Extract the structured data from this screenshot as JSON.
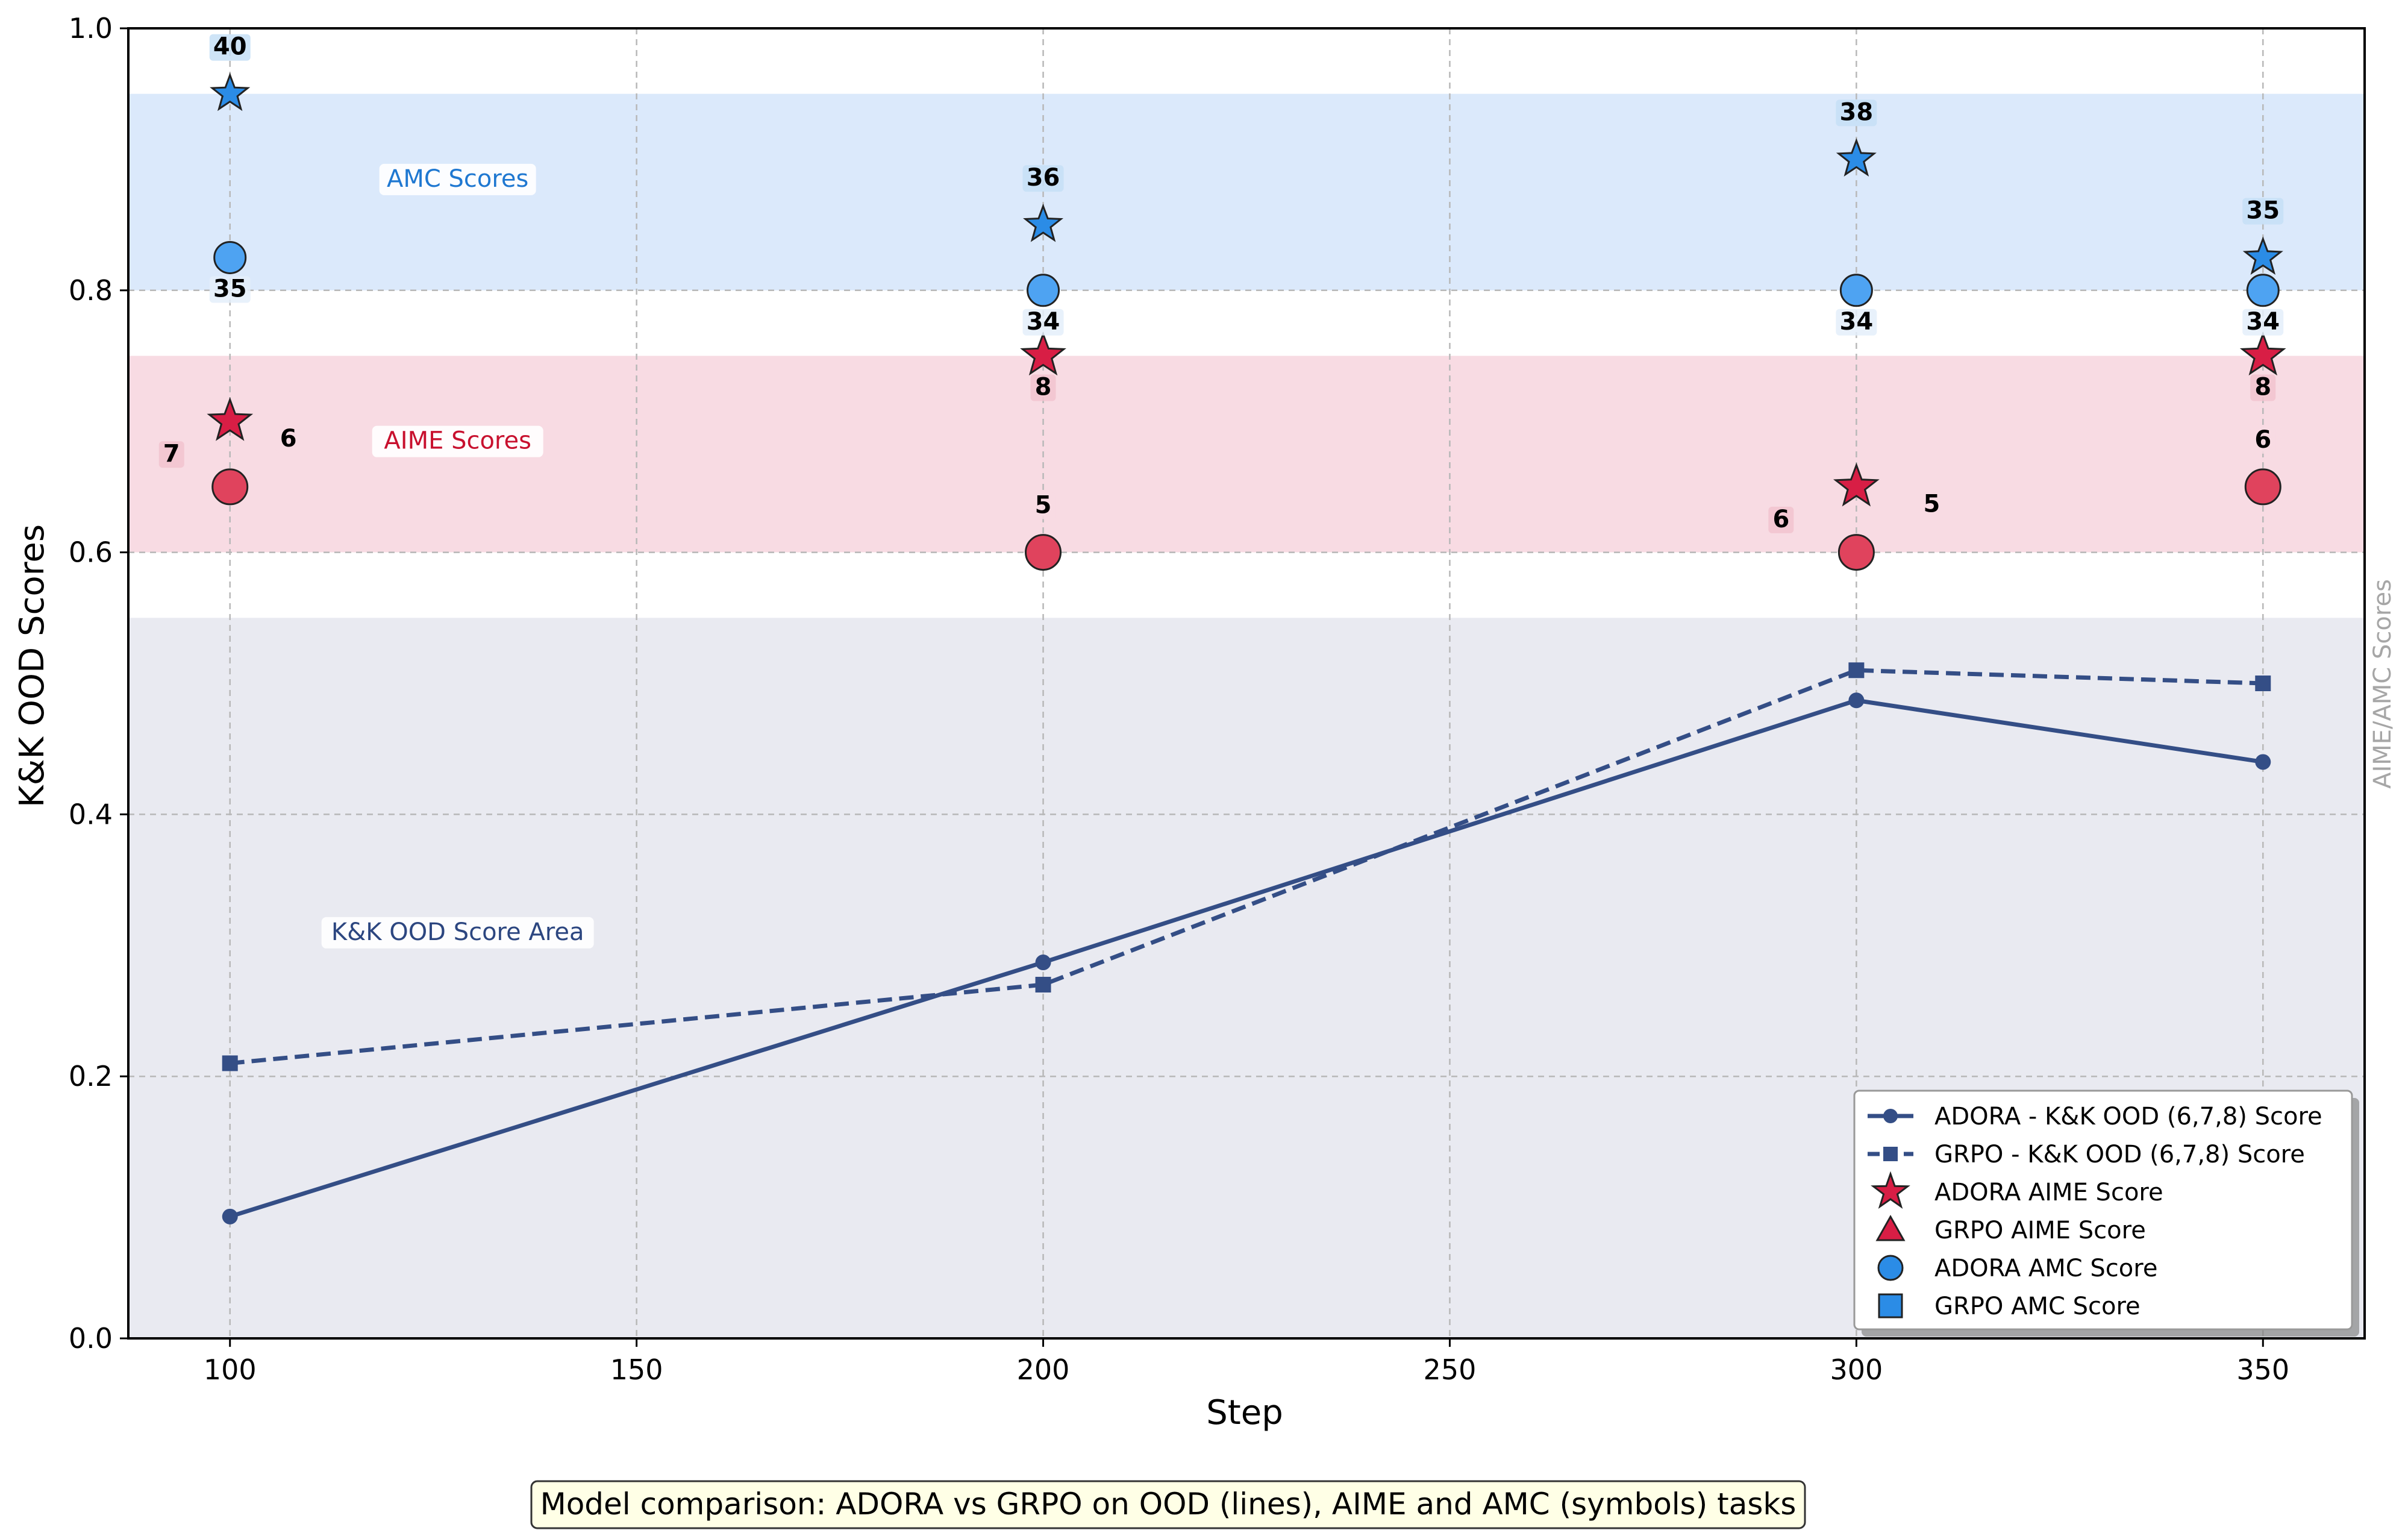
{
  "chart_data": {
    "type": "line",
    "xlabel": "Step",
    "ylabel": "K&K OOD Scores",
    "right_label": "AIME/AMC Scores",
    "caption": "Model comparison: ADORA vs GRPO on OOD (lines), AIME and AMC (symbols) tasks",
    "xlim": [
      87.5,
      362.5
    ],
    "ylim": [
      0,
      1.0
    ],
    "x_ticks": [
      100,
      150,
      200,
      250,
      300,
      350
    ],
    "y_ticks": [
      0.0,
      0.2,
      0.4,
      0.6,
      0.8,
      1.0
    ],
    "y_tick_labels": [
      "0.0",
      "0.2",
      "0.4",
      "0.6",
      "0.8",
      "1.0"
    ],
    "grid": true,
    "legend_position": "lower right",
    "bands": [
      {
        "name": "amc-band",
        "label": "AMC Scores",
        "y_range": [
          0.8,
          0.95
        ],
        "fill": "#dbe9fb",
        "text_color": "#1f78d1",
        "label_at": [
          128,
          0.88
        ]
      },
      {
        "name": "aime-band",
        "label": "AIME Scores",
        "y_range": [
          0.6,
          0.75
        ],
        "fill": "#f8dbe3",
        "text_color": "#c8102e",
        "label_at": [
          128,
          0.68
        ]
      },
      {
        "name": "kk-band",
        "label": "K&K OOD Score Area",
        "y_range": [
          0.0,
          0.55
        ],
        "fill": "#e9eaf1",
        "text_color": "#2c4680",
        "label_at": [
          128,
          0.305
        ]
      }
    ],
    "series": [
      {
        "name": "ADORA - K&K OOD (6,7,8) Score",
        "x": [
          100,
          200,
          300,
          350
        ],
        "y": [
          0.093,
          0.287,
          0.487,
          0.44
        ],
        "style": "solid",
        "marker": "circle",
        "color": "#344e86"
      },
      {
        "name": "GRPO - K&K OOD (6,7,8) Score",
        "x": [
          100,
          200,
          300,
          350
        ],
        "y": [
          0.21,
          0.27,
          0.51,
          0.5
        ],
        "style": "dashed",
        "marker": "square",
        "color": "#344e86"
      }
    ],
    "symbol_series": [
      {
        "name": "ADORA AMC",
        "marker": "star",
        "fill": "#2b8ce6",
        "points": [
          {
            "x": 100,
            "y": 0.95,
            "label": "40"
          },
          {
            "x": 200,
            "y": 0.85,
            "label": "36"
          },
          {
            "x": 300,
            "y": 0.9,
            "label": "38"
          },
          {
            "x": 350,
            "y": 0.825,
            "label": "35"
          }
        ]
      },
      {
        "name": "GRPO AMC",
        "marker": "circle",
        "fill": "#4ea3f2",
        "points": [
          {
            "x": 100,
            "y": 0.825,
            "label": "35"
          },
          {
            "x": 200,
            "y": 0.8,
            "label": "34"
          },
          {
            "x": 300,
            "y": 0.8,
            "label": "34"
          },
          {
            "x": 350,
            "y": 0.8,
            "label": "34"
          }
        ]
      },
      {
        "name": "ADORA AIME",
        "marker": "star",
        "fill": "#d81e45",
        "points": [
          {
            "x": 100,
            "y": 0.7,
            "label": "7"
          },
          {
            "x": 200,
            "y": 0.75,
            "label": "8"
          },
          {
            "x": 300,
            "y": 0.65,
            "label": "6"
          },
          {
            "x": 350,
            "y": 0.75,
            "label": "8"
          }
        ]
      },
      {
        "name": "GRPO AIME",
        "marker": "circle",
        "fill": "#e0435d",
        "points": [
          {
            "x": 100,
            "y": 0.65,
            "label": "6"
          },
          {
            "x": 200,
            "y": 0.6,
            "label": "5"
          },
          {
            "x": 300,
            "y": 0.6,
            "label": "5"
          },
          {
            "x": 350,
            "y": 0.65,
            "label": "6"
          }
        ]
      }
    ],
    "legend": [
      {
        "label": "ADORA - K&K OOD (6,7,8) Score",
        "symbol": "line-circle",
        "color": "#344e86"
      },
      {
        "label": "GRPO - K&K OOD (6,7,8) Score",
        "symbol": "dash-square",
        "color": "#344e86"
      },
      {
        "label": "ADORA AIME Score",
        "symbol": "star",
        "color": "#d81e45"
      },
      {
        "label": "GRPO AIME Score",
        "symbol": "triangle",
        "color": "#d81e45"
      },
      {
        "label": "ADORA AMC Score",
        "symbol": "circle",
        "color": "#2b8ce6"
      },
      {
        "label": "GRPO AMC Score",
        "symbol": "square",
        "color": "#2b8ce6"
      }
    ]
  }
}
